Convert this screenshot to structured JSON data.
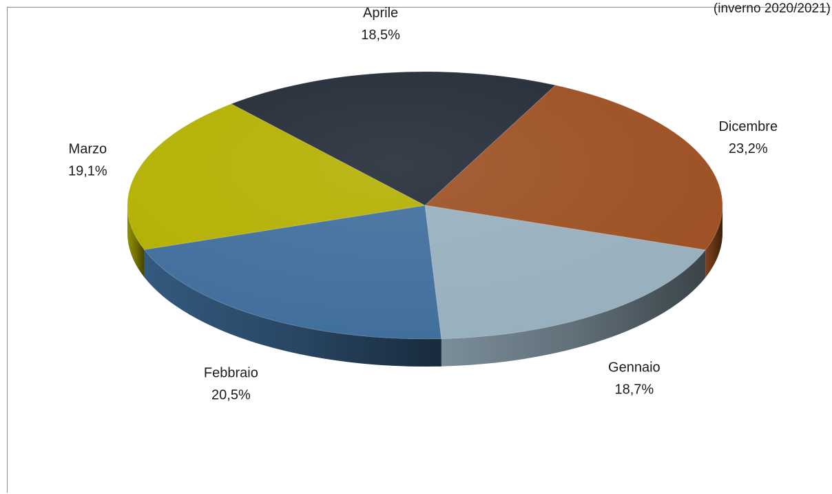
{
  "chart_data": {
    "type": "pie",
    "title": "(inverno 2020/2021)",
    "categories": [
      "Dicembre",
      "Gennaio",
      "Febbraio",
      "Marzo",
      "Aprile"
    ],
    "values": [
      23.2,
      18.7,
      20.5,
      19.1,
      18.5
    ],
    "value_labels": [
      "23,2%",
      "18,7%",
      "20,5%",
      "19,1%",
      "18,5%"
    ],
    "colors": [
      "#9c4f22",
      "#98afbd",
      "#406e9c",
      "#b3b000",
      "#222a36"
    ],
    "style": "3d"
  }
}
